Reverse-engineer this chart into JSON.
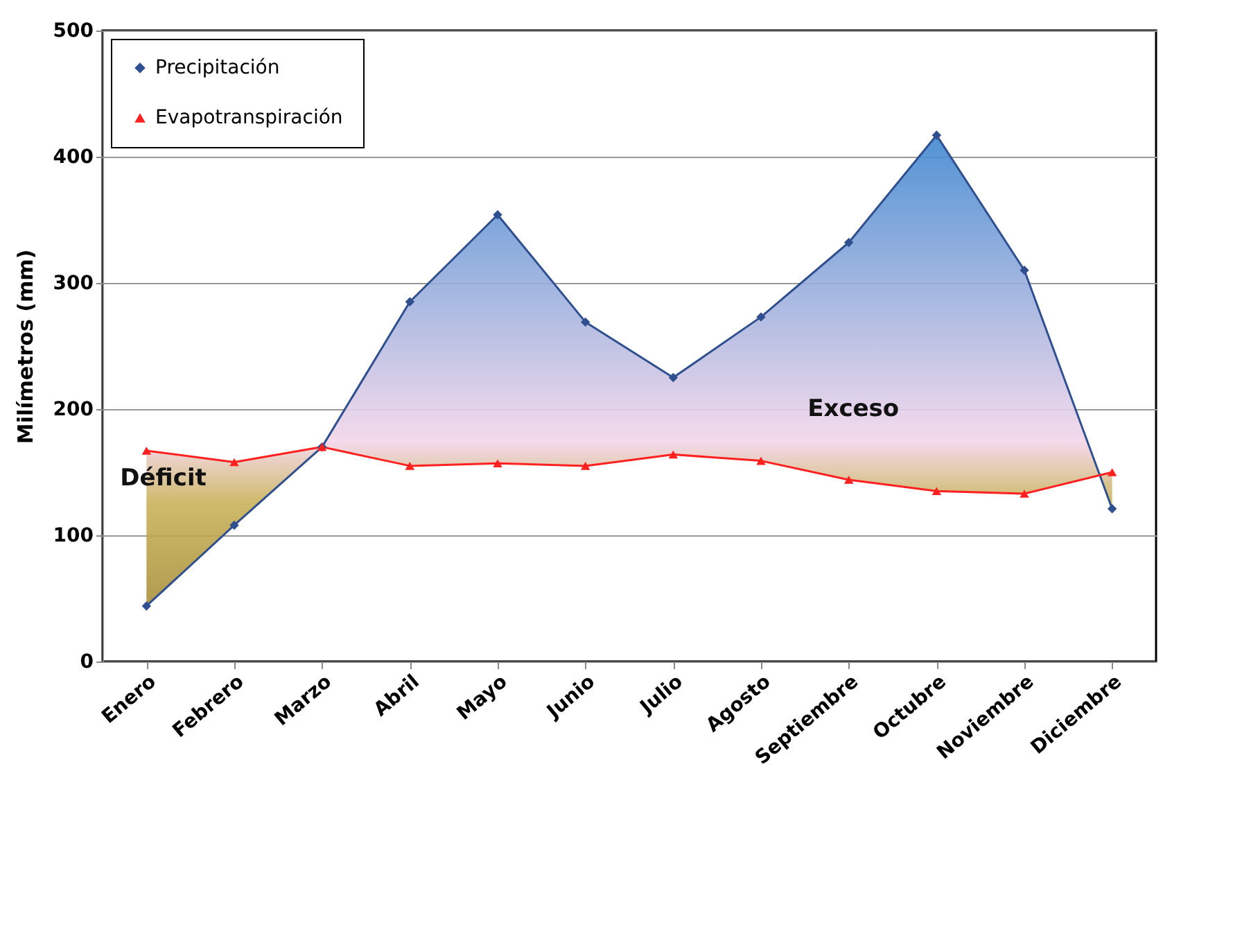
{
  "chart_data": {
    "type": "line",
    "ylabel": "Milímetros (mm)",
    "categories": [
      "Enero",
      "Febrero",
      "Marzo",
      "Abril",
      "Mayo",
      "Junio",
      "Julio",
      "Agosto",
      "Septiembre",
      "Octubre",
      "Noviembre",
      "Diciembre"
    ],
    "series": [
      {
        "name": "Precipitación",
        "color": "#2f4f8f",
        "marker": "diamond",
        "values": [
          44,
          108,
          170,
          285,
          354,
          269,
          225,
          273,
          332,
          417,
          310,
          121
        ],
        "lower": [
          167,
          158,
          170,
          155,
          157,
          155,
          164,
          159,
          144,
          135,
          133,
          150
        ],
        "upper": [
          44,
          108,
          170,
          285,
          354,
          269,
          225,
          273,
          332,
          417,
          310,
          121
        ]
      },
      {
        "name": "Evapotranspiración",
        "color": "#ff2020",
        "marker": "triangle",
        "values": [
          167,
          158,
          170,
          155,
          157,
          155,
          164,
          159,
          144,
          135,
          133,
          150
        ]
      }
    ],
    "ylim": [
      0,
      500
    ],
    "yticks": [
      0,
      100,
      200,
      300,
      400,
      500
    ],
    "grid": "y",
    "legend": "top left",
    "annotations": [
      "Déficit",
      "Exceso"
    ]
  }
}
